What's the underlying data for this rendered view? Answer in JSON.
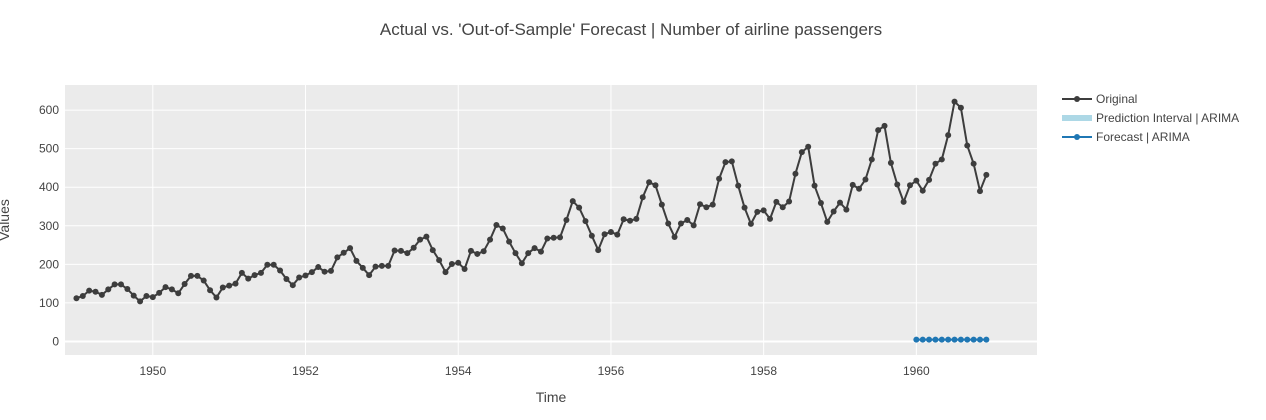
{
  "chart_data": {
    "type": "line",
    "title": "Actual vs. 'Out-of-Sample' Forecast | Number of airline passengers",
    "xlabel": "Time",
    "ylabel": "Values",
    "xlim": [
      1948.85,
      1961.58
    ],
    "ylim": [
      -35,
      665
    ],
    "x_ticks": [
      1950,
      1952,
      1954,
      1956,
      1958,
      1960
    ],
    "y_ticks": [
      0,
      100,
      200,
      300,
      400,
      500,
      600
    ],
    "grid": true,
    "legend_position": "right",
    "colors": {
      "plot_bg": "#ebebeb",
      "grid": "#ffffff",
      "original": "#3d3d3d",
      "interval": "#add8e6",
      "forecast": "#1f77b4"
    },
    "series": [
      {
        "name": "Original",
        "start_year": 1949,
        "step_months": 1,
        "values": [
          112,
          118,
          132,
          129,
          121,
          135,
          148,
          148,
          136,
          119,
          104,
          118,
          115,
          126,
          141,
          135,
          125,
          149,
          170,
          170,
          158,
          133,
          114,
          140,
          145,
          150,
          178,
          163,
          172,
          178,
          199,
          199,
          184,
          162,
          146,
          166,
          171,
          180,
          193,
          181,
          183,
          218,
          230,
          242,
          209,
          191,
          172,
          194,
          196,
          196,
          236,
          235,
          229,
          243,
          264,
          272,
          237,
          211,
          180,
          201,
          204,
          188,
          235,
          227,
          234,
          264,
          302,
          293,
          259,
          229,
          203,
          229,
          242,
          233,
          267,
          269,
          270,
          315,
          364,
          347,
          312,
          274,
          237,
          278,
          284,
          277,
          317,
          313,
          318,
          374,
          413,
          405,
          355,
          306,
          271,
          306,
          315,
          301,
          356,
          348,
          355,
          422,
          465,
          467,
          404,
          347,
          305,
          336,
          340,
          318,
          362,
          348,
          363,
          435,
          491,
          505,
          404,
          359,
          310,
          337,
          360,
          342,
          406,
          396,
          420,
          472,
          548,
          559,
          463,
          407,
          362,
          405,
          417,
          391,
          419,
          461,
          472,
          535,
          622,
          606,
          508,
          461,
          390,
          432
        ]
      },
      {
        "name": "Prediction Interval | ARIMA",
        "values": []
      },
      {
        "name": "Forecast | ARIMA",
        "start_year": 1960,
        "step_months": 1,
        "values": [
          5,
          5,
          5,
          5,
          5,
          5,
          5,
          5,
          5,
          5,
          5,
          5
        ]
      }
    ]
  }
}
